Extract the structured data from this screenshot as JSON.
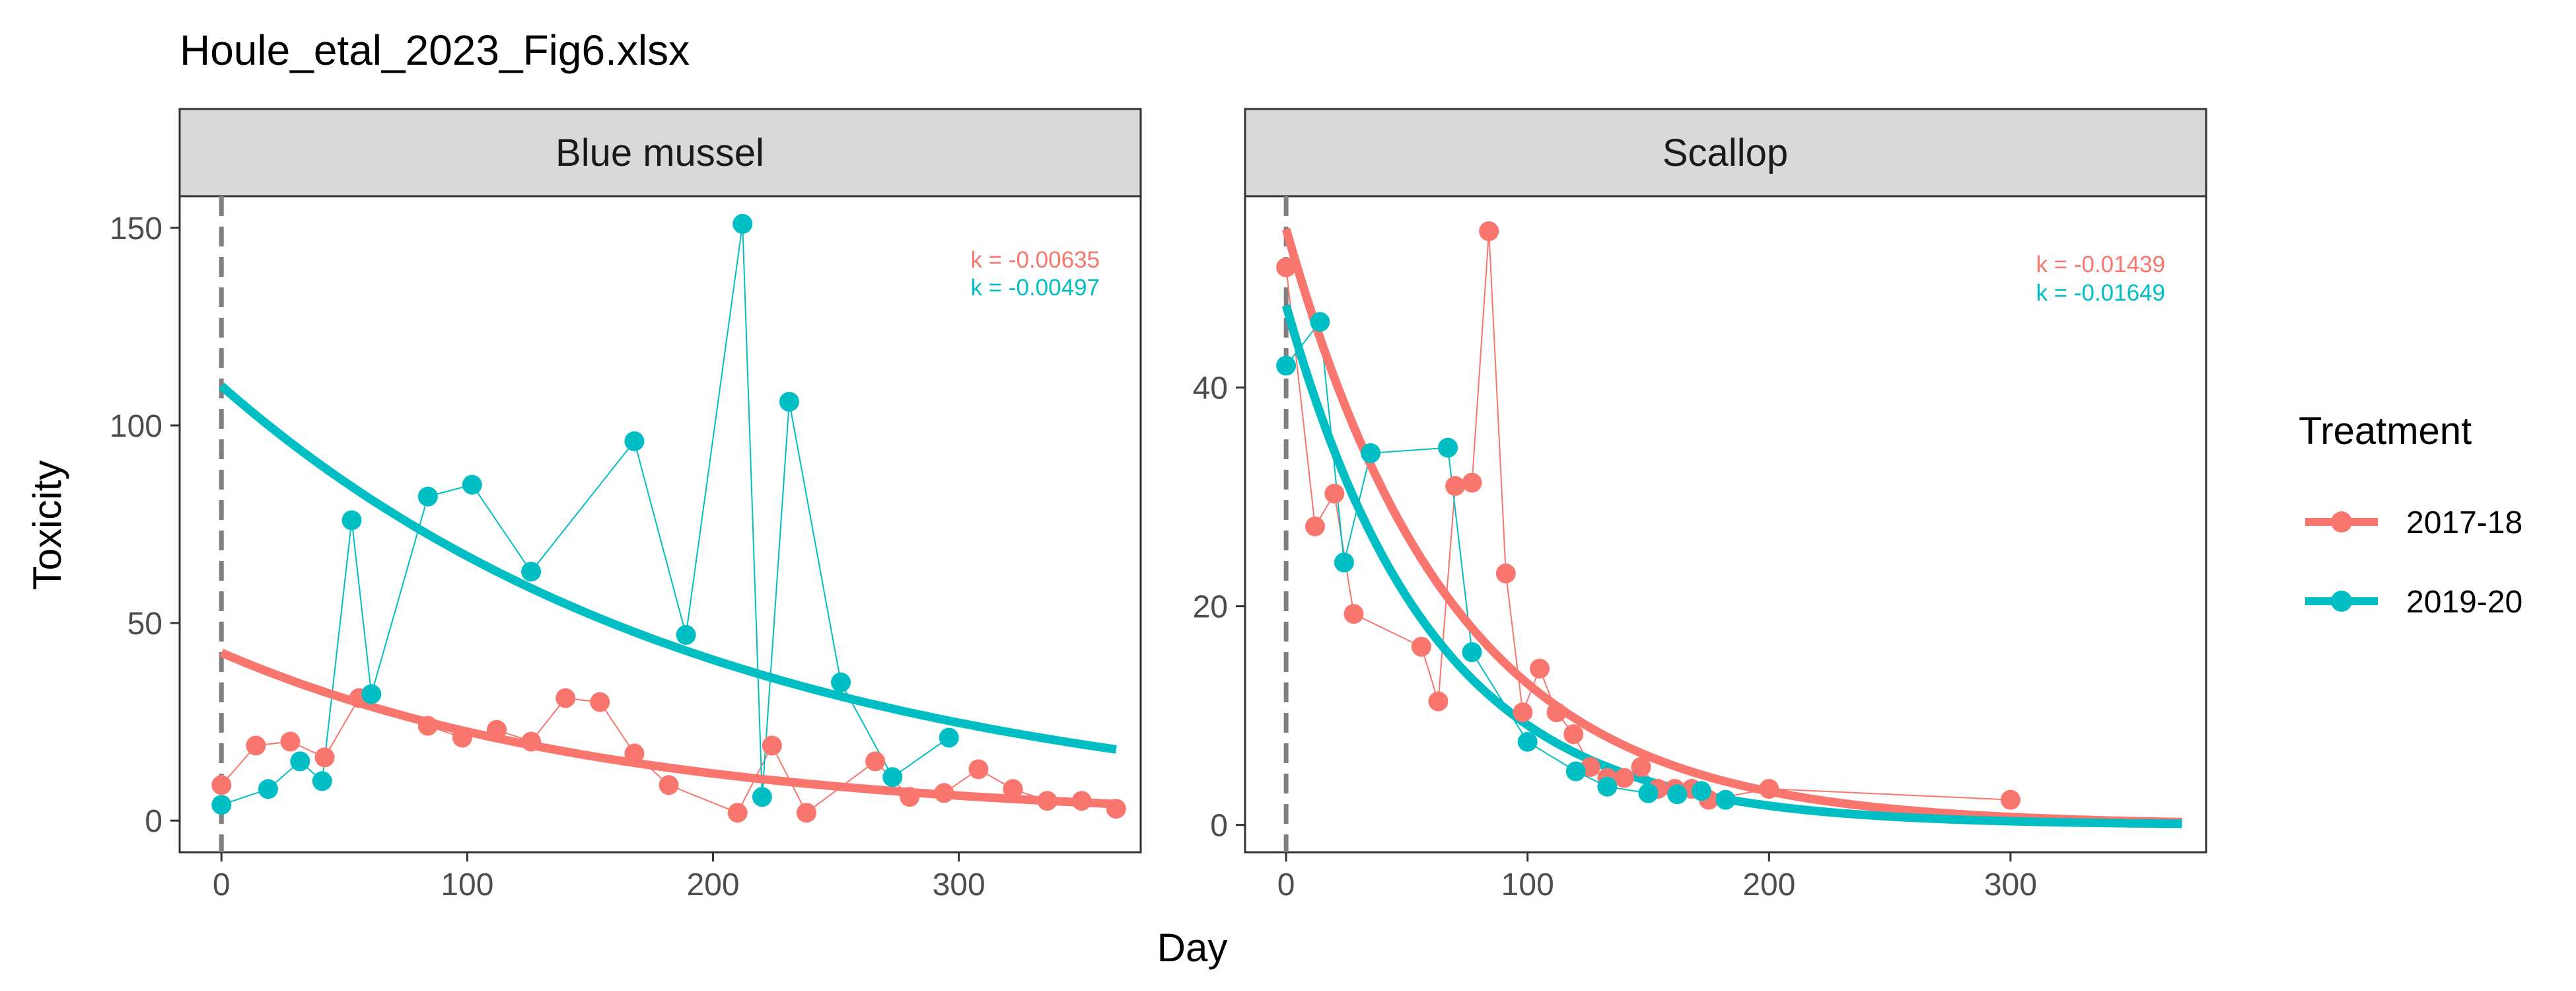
{
  "chart_data": {
    "type": "scatter",
    "title": "Houle_etal_2023_Fig6.xlsx",
    "xlabel": "Day",
    "ylabel": "Toxicity",
    "legend": {
      "title": "Treatment",
      "position": "right",
      "entries": [
        {
          "label": "2017-18",
          "color": "#F8766D"
        },
        {
          "label": "2019-20",
          "color": "#00BFC4"
        }
      ]
    },
    "grid": false,
    "reference_line": {
      "x": 0,
      "style": "dashed",
      "color": "#808080"
    },
    "panels": [
      {
        "strip": "Blue mussel",
        "xlim": [
          -17,
          374
        ],
        "ylim": [
          -8,
          158
        ],
        "x_ticks": [
          0,
          100,
          200,
          300
        ],
        "y_ticks": [
          0,
          50,
          100,
          150
        ],
        "series": [
          {
            "name": "2017-18",
            "color": "#F8766D",
            "points": [
              [
                0,
                9
              ],
              [
                14,
                19
              ],
              [
                28,
                20
              ],
              [
                42,
                16
              ],
              [
                56,
                31
              ],
              [
                84,
                24
              ],
              [
                98,
                21
              ],
              [
                112,
                23
              ],
              [
                126,
                20
              ],
              [
                140,
                31
              ],
              [
                154,
                30
              ],
              [
                168,
                17
              ],
              [
                182,
                9
              ],
              [
                210,
                2
              ],
              [
                224,
                19
              ],
              [
                238,
                2
              ],
              [
                266,
                15
              ],
              [
                280,
                6
              ],
              [
                294,
                7
              ],
              [
                308,
                13
              ],
              [
                322,
                8
              ],
              [
                336,
                5
              ],
              [
                350,
                5
              ],
              [
                364,
                3
              ]
            ],
            "fit": {
              "k": -0.00635,
              "label": "k = -0.00635",
              "a": 42.5
            }
          },
          {
            "name": "2019-20",
            "color": "#00BFC4",
            "points": [
              [
                0,
                4
              ],
              [
                19,
                8
              ],
              [
                32,
                15
              ],
              [
                41,
                10
              ],
              [
                53,
                76
              ],
              [
                61,
                32
              ],
              [
                84,
                82
              ],
              [
                102,
                85
              ],
              [
                126,
                63
              ],
              [
                168,
                96
              ],
              [
                189,
                47
              ],
              [
                212,
                151
              ],
              [
                220,
                6
              ],
              [
                231,
                106
              ],
              [
                252,
                35
              ],
              [
                273,
                11
              ],
              [
                296,
                21
              ]
            ],
            "fit": {
              "k": -0.00497,
              "label": "k = -0.00497",
              "a": 110
            }
          }
        ]
      },
      {
        "strip": "Scallop",
        "xlim": [
          -17,
          381
        ],
        "ylim": [
          -2.5,
          57.5
        ],
        "x_ticks": [
          0,
          100,
          200,
          300
        ],
        "y_ticks": [
          0,
          20,
          40
        ],
        "series": [
          {
            "name": "2017-18",
            "color": "#F8766D",
            "points": [
              [
                0,
                51
              ],
              [
                12,
                27.3
              ],
              [
                20,
                30.3
              ],
              [
                28,
                19.3
              ],
              [
                56,
                16.3
              ],
              [
                63,
                11.3
              ],
              [
                70,
                31
              ],
              [
                77,
                31.3
              ],
              [
                84,
                54.3
              ],
              [
                91,
                23
              ],
              [
                98,
                10.3
              ],
              [
                105,
                14.3
              ],
              [
                112,
                10.3
              ],
              [
                119,
                8.3
              ],
              [
                126,
                5.3
              ],
              [
                133,
                4.3
              ],
              [
                140,
                4.3
              ],
              [
                147,
                5.3
              ],
              [
                154,
                3.3
              ],
              [
                161,
                3.3
              ],
              [
                168,
                3.3
              ],
              [
                175,
                2.3
              ],
              [
                200,
                3.3
              ],
              [
                300,
                2.3
              ]
            ],
            "fit": {
              "k": -0.01439,
              "label": "k = -0.01439",
              "a": 54.5
            }
          },
          {
            "name": "2019-20",
            "color": "#00BFC4",
            "points": [
              [
                0,
                42
              ],
              [
                14,
                46
              ],
              [
                24,
                24
              ],
              [
                35,
                34
              ],
              [
                67,
                34.5
              ],
              [
                77,
                15.8
              ],
              [
                100,
                7.6
              ],
              [
                120,
                4.9
              ],
              [
                133,
                3.5
              ],
              [
                150,
                2.9
              ],
              [
                162,
                2.8
              ],
              [
                172,
                3.1
              ],
              [
                182,
                2.3
              ]
            ],
            "fit": {
              "k": -0.01649,
              "label": "k = -0.01649",
              "a": 47.5
            }
          }
        ]
      }
    ]
  }
}
